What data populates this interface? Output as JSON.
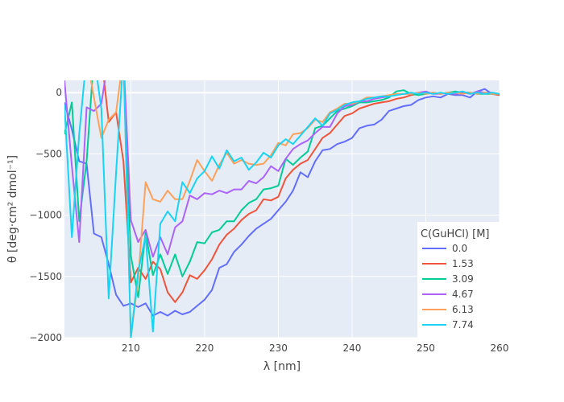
{
  "chart_data": {
    "type": "line",
    "xlabel": "λ [nm]",
    "ylabel": "θ [deg·cm² dmol⁻¹]",
    "xlim": [
      201,
      260
    ],
    "ylim": [
      -2000,
      100
    ],
    "x_ticks": [
      210,
      220,
      230,
      240,
      250,
      260
    ],
    "y_ticks": [
      0,
      -500,
      -1000,
      -1500,
      -2000
    ],
    "x_tick_labels": [
      "210",
      "220",
      "230",
      "240",
      "250",
      "260"
    ],
    "y_tick_labels": [
      "0",
      "−500",
      "−1000",
      "−1500",
      "−2000"
    ],
    "legend": {
      "title": "C(GuHCl) [M]",
      "placement": "lower-right"
    },
    "plot_bgcolor": "#e5ecf6",
    "series": [
      {
        "name": "0.0",
        "color": "#636efa",
        "x": [
          201,
          202,
          203,
          204,
          205,
          206,
          207,
          208,
          209,
          210,
          211,
          212,
          213,
          214,
          215,
          216,
          217,
          218,
          219,
          220,
          221,
          222,
          223,
          224,
          225,
          226,
          227,
          228,
          229,
          230,
          231,
          232,
          233,
          234,
          235,
          236,
          237,
          238,
          239,
          240,
          241,
          242,
          243,
          244,
          245,
          246,
          247,
          248,
          249,
          250,
          251,
          252,
          253,
          254,
          255,
          256,
          257,
          258,
          259,
          260
        ],
        "y": [
          -80,
          -300,
          -560,
          -580,
          -1150,
          -1180,
          -1400,
          -1650,
          -1740,
          -1720,
          -1750,
          -1720,
          -1820,
          -1790,
          -1820,
          -1780,
          -1810,
          -1790,
          -1740,
          -1690,
          -1610,
          -1430,
          -1400,
          -1300,
          -1240,
          -1170,
          -1110,
          -1070,
          -1030,
          -960,
          -890,
          -800,
          -650,
          -690,
          -560,
          -470,
          -460,
          -420,
          -400,
          -370,
          -290,
          -270,
          -260,
          -220,
          -150,
          -130,
          -110,
          -100,
          -60,
          -40,
          -30,
          -40,
          -10,
          -20,
          -20,
          -40,
          10,
          30,
          -10,
          -20
        ]
      },
      {
        "name": "1.53",
        "color": "#ef553b",
        "x": [
          201,
          202,
          203,
          204,
          205,
          206,
          207,
          208,
          209,
          210,
          211,
          212,
          213,
          214,
          215,
          216,
          217,
          218,
          219,
          220,
          221,
          222,
          223,
          224,
          225,
          226,
          227,
          228,
          229,
          230,
          231,
          232,
          233,
          234,
          235,
          236,
          237,
          238,
          239,
          240,
          241,
          242,
          243,
          244,
          245,
          246,
          247,
          248,
          249,
          250,
          251,
          252,
          253,
          254,
          255,
          256,
          257,
          258,
          259,
          260
        ],
        "y": [
          100,
          200,
          300,
          300,
          300,
          300,
          -240,
          -160,
          -560,
          -1550,
          -1430,
          -1520,
          -1380,
          -1440,
          -1630,
          -1710,
          -1630,
          -1490,
          -1520,
          -1450,
          -1360,
          -1240,
          -1160,
          -1110,
          -1040,
          -990,
          -960,
          -870,
          -880,
          -850,
          -700,
          -630,
          -580,
          -550,
          -460,
          -370,
          -330,
          -260,
          -190,
          -170,
          -130,
          -110,
          -90,
          -80,
          -70,
          -50,
          -40,
          -20,
          -10,
          -10,
          0,
          -10,
          0,
          -10,
          0,
          0,
          -10,
          0,
          -10,
          -20
        ]
      },
      {
        "name": "3.09",
        "color": "#00cc96",
        "x": [
          201,
          202,
          203,
          204,
          205,
          206,
          207,
          208,
          209,
          210,
          211,
          212,
          213,
          214,
          215,
          216,
          217,
          218,
          219,
          220,
          221,
          222,
          223,
          224,
          225,
          226,
          227,
          228,
          229,
          230,
          231,
          232,
          233,
          234,
          235,
          236,
          237,
          238,
          239,
          240,
          241,
          242,
          243,
          244,
          245,
          246,
          247,
          248,
          249,
          250,
          251,
          252,
          253,
          254,
          255,
          256,
          257,
          258,
          259,
          260
        ],
        "y": [
          -340,
          -80,
          -1050,
          -560,
          300,
          300,
          300,
          300,
          300,
          -1330,
          -1670,
          -1140,
          -1490,
          -1320,
          -1480,
          -1320,
          -1500,
          -1380,
          -1220,
          -1230,
          -1140,
          -1120,
          -1050,
          -1050,
          -960,
          -900,
          -870,
          -790,
          -780,
          -760,
          -540,
          -590,
          -530,
          -480,
          -290,
          -270,
          -210,
          -150,
          -130,
          -110,
          -80,
          -80,
          -70,
          -60,
          -40,
          10,
          20,
          -10,
          -20,
          -10,
          0,
          -10,
          0,
          10,
          0,
          0,
          -10,
          -10,
          -10,
          -10
        ]
      },
      {
        "name": "4.67",
        "color": "#ab63fa",
        "x": [
          201,
          202,
          203,
          204,
          205,
          206,
          207,
          208,
          209,
          210,
          211,
          212,
          213,
          214,
          215,
          216,
          217,
          218,
          219,
          220,
          221,
          222,
          223,
          224,
          225,
          226,
          227,
          228,
          229,
          230,
          231,
          232,
          233,
          234,
          235,
          236,
          237,
          238,
          239,
          240,
          241,
          242,
          243,
          244,
          245,
          246,
          247,
          248,
          249,
          250,
          251,
          252,
          253,
          254,
          255,
          256,
          257,
          258,
          259,
          260
        ],
        "y": [
          100,
          -600,
          -1220,
          -120,
          -150,
          -90,
          300,
          300,
          300,
          -1040,
          -1220,
          -1120,
          -1340,
          -1180,
          -1320,
          -1100,
          -1050,
          -840,
          -870,
          -820,
          -830,
          -800,
          -820,
          -790,
          -790,
          -720,
          -740,
          -690,
          -600,
          -640,
          -540,
          -460,
          -420,
          -390,
          -330,
          -280,
          -280,
          -170,
          -110,
          -100,
          -70,
          -70,
          -50,
          -40,
          -30,
          -10,
          -10,
          -10,
          0,
          10,
          -10,
          -10,
          0,
          -10,
          0,
          -10,
          10,
          0,
          0,
          -10
        ]
      },
      {
        "name": "6.13",
        "color": "#ffa15a",
        "x": [
          201,
          202,
          203,
          204,
          205,
          206,
          207,
          208,
          209,
          210,
          211,
          212,
          213,
          214,
          215,
          216,
          217,
          218,
          219,
          220,
          221,
          222,
          223,
          224,
          225,
          226,
          227,
          228,
          229,
          230,
          231,
          232,
          233,
          234,
          235,
          236,
          237,
          238,
          239,
          240,
          241,
          242,
          243,
          244,
          245,
          246,
          247,
          248,
          249,
          250,
          251,
          252,
          253,
          254,
          255,
          256,
          257,
          258,
          259,
          260
        ],
        "y": [
          300,
          300,
          300,
          300,
          -40,
          -370,
          -220,
          -160,
          300,
          -2000,
          -1520,
          -730,
          -870,
          -890,
          -800,
          -870,
          -870,
          -720,
          -550,
          -640,
          -720,
          -590,
          -490,
          -580,
          -550,
          -580,
          -590,
          -580,
          -510,
          -410,
          -430,
          -340,
          -330,
          -290,
          -220,
          -240,
          -160,
          -130,
          -90,
          -90,
          -70,
          -40,
          -40,
          -30,
          -20,
          -10,
          -10,
          -10,
          0,
          -10,
          0,
          -10,
          0,
          0,
          -10,
          0,
          -10,
          0,
          -10,
          -10
        ]
      },
      {
        "name": "7.74",
        "color": "#19d3f3",
        "x": [
          201,
          202,
          203,
          204,
          205,
          206,
          207,
          208,
          209,
          210,
          211,
          212,
          213,
          214,
          215,
          216,
          217,
          218,
          219,
          220,
          221,
          222,
          223,
          224,
          225,
          226,
          227,
          228,
          229,
          230,
          231,
          232,
          233,
          234,
          235,
          236,
          237,
          238,
          239,
          240,
          241,
          242,
          243,
          244,
          245,
          246,
          247,
          248,
          249,
          250,
          251,
          252,
          253,
          254,
          255,
          256,
          257,
          258,
          259,
          260
        ],
        "y": [
          -100,
          -1180,
          -340,
          300,
          300,
          -130,
          -1680,
          -650,
          300,
          -2000,
          -1460,
          -1170,
          -1950,
          -1070,
          -970,
          -1050,
          -730,
          -820,
          -700,
          -640,
          -520,
          -620,
          -470,
          -560,
          -530,
          -630,
          -570,
          -490,
          -530,
          -430,
          -380,
          -420,
          -350,
          -280,
          -210,
          -270,
          -170,
          -140,
          -100,
          -80,
          -70,
          -50,
          -40,
          -30,
          -30,
          -20,
          -10,
          0,
          -10,
          0,
          -10,
          0,
          -10,
          0,
          10,
          -10,
          0,
          -10,
          0,
          -10
        ]
      }
    ]
  }
}
